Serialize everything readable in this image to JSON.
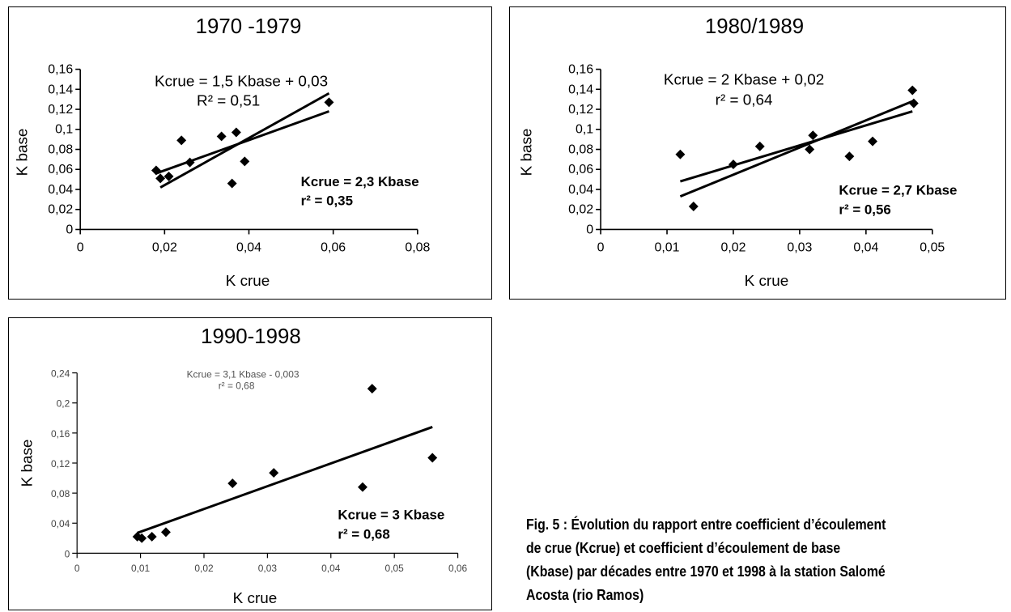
{
  "caption": {
    "lines": [
      "Fig. 5 : Évolution du rapport entre coefficient d’écoulement",
      "de crue (Kcrue) et coefficient d’écoulement de base",
      "(Kbase) par décades entre 1970 et 1998 à la station Salomé",
      "Acosta (rio Ramos)"
    ]
  },
  "chart_data": [
    {
      "type": "scatter",
      "title": "1970 -1979",
      "xlabel": "K  crue",
      "ylabel": "K  base",
      "xlim": [
        0,
        0.08
      ],
      "ylim": [
        0,
        0.16
      ],
      "xticks": [
        0,
        0.02,
        0.04,
        0.06,
        0.08
      ],
      "xtick_labels": [
        "0",
        "0,02",
        "0,04",
        "0,06",
        "0,08"
      ],
      "yticks": [
        0,
        0.02,
        0.04,
        0.06,
        0.08,
        0.1,
        0.12,
        0.14,
        0.16
      ],
      "ytick_labels": [
        "0",
        "0,02",
        "0,04",
        "0,06",
        "0,08",
        "0,1",
        "0,12",
        "0,14",
        "0,16"
      ],
      "points": [
        [
          0.018,
          0.059
        ],
        [
          0.019,
          0.051
        ],
        [
          0.021,
          0.053
        ],
        [
          0.024,
          0.089
        ],
        [
          0.026,
          0.067
        ],
        [
          0.0335,
          0.093
        ],
        [
          0.036,
          0.046
        ],
        [
          0.037,
          0.097
        ],
        [
          0.039,
          0.068
        ],
        [
          0.059,
          0.127
        ]
      ],
      "trendlines": [
        {
          "x": [
            0.019,
            0.059
          ],
          "y": [
            0.042,
            0.136
          ]
        },
        {
          "x": [
            0.018,
            0.059
          ],
          "y": [
            0.056,
            0.118
          ]
        }
      ],
      "annotations": {
        "eq_top_1": "Kcrue = 1,5 Kbase + 0,03",
        "eq_top_2": "R² = 0,51",
        "eq_bold_1": "Kcrue = 2,3 Kbase",
        "eq_bold_2": "r² = 0,35"
      }
    },
    {
      "type": "scatter",
      "title": "1980/1989",
      "xlabel": "K  crue",
      "ylabel": "K  base",
      "xlim": [
        0,
        0.05
      ],
      "ylim": [
        0,
        0.16
      ],
      "xticks": [
        0,
        0.01,
        0.02,
        0.03,
        0.04,
        0.05
      ],
      "xtick_labels": [
        "0",
        "0,01",
        "0,02",
        "0,03",
        "0,04",
        "0,05"
      ],
      "yticks": [
        0,
        0.02,
        0.04,
        0.06,
        0.08,
        0.1,
        0.12,
        0.14,
        0.16
      ],
      "ytick_labels": [
        "0",
        "0,02",
        "0,04",
        "0,06",
        "0,08",
        "0,1",
        "0,12",
        "0,14",
        "0,16"
      ],
      "points": [
        [
          0.012,
          0.075
        ],
        [
          0.014,
          0.023
        ],
        [
          0.02,
          0.065
        ],
        [
          0.024,
          0.083
        ],
        [
          0.0315,
          0.08
        ],
        [
          0.032,
          0.094
        ],
        [
          0.0375,
          0.073
        ],
        [
          0.041,
          0.088
        ],
        [
          0.047,
          0.139
        ],
        [
          0.0472,
          0.126
        ]
      ],
      "trendlines": [
        {
          "x": [
            0.012,
            0.047
          ],
          "y": [
            0.033,
            0.128
          ]
        },
        {
          "x": [
            0.012,
            0.047
          ],
          "y": [
            0.048,
            0.118
          ]
        }
      ],
      "annotations": {
        "eq_top_1": "Kcrue = 2 Kbase + 0,02",
        "eq_top_2": "r² = 0,64",
        "eq_bold_1": "Kcrue = 2,7 Kbase",
        "eq_bold_2": "r² = 0,56"
      }
    },
    {
      "type": "scatter",
      "title": "1990-1998",
      "xlabel": "K  crue",
      "ylabel": "K  base",
      "xlim": [
        0,
        0.06
      ],
      "ylim": [
        0,
        0.24
      ],
      "xticks": [
        0,
        0.01,
        0.02,
        0.03,
        0.04,
        0.05,
        0.06
      ],
      "xtick_labels": [
        "0",
        "0,01",
        "0,02",
        "0,03",
        "0,04",
        "0,05",
        "0,06"
      ],
      "yticks": [
        0,
        0.04,
        0.08,
        0.12,
        0.16,
        0.2,
        0.24
      ],
      "ytick_labels": [
        "0",
        "0,04",
        "0,08",
        "0,12",
        "0,16",
        "0,2",
        "0,24"
      ],
      "points": [
        [
          0.0095,
          0.022
        ],
        [
          0.0102,
          0.02
        ],
        [
          0.0118,
          0.022
        ],
        [
          0.014,
          0.028
        ],
        [
          0.0245,
          0.093
        ],
        [
          0.031,
          0.107
        ],
        [
          0.045,
          0.088
        ],
        [
          0.0465,
          0.219
        ],
        [
          0.056,
          0.127
        ]
      ],
      "trendlines": [
        {
          "x": [
            0.0095,
            0.056
          ],
          "y": [
            0.027,
            0.168
          ]
        }
      ],
      "annotations": {
        "eq_top_1": "Kcrue = 3,1 Kbase - 0,003",
        "eq_top_2": "r² = 0,68",
        "eq_bold_1": "Kcrue = 3 Kbase",
        "eq_bold_2": "r² = 0,68"
      }
    }
  ]
}
